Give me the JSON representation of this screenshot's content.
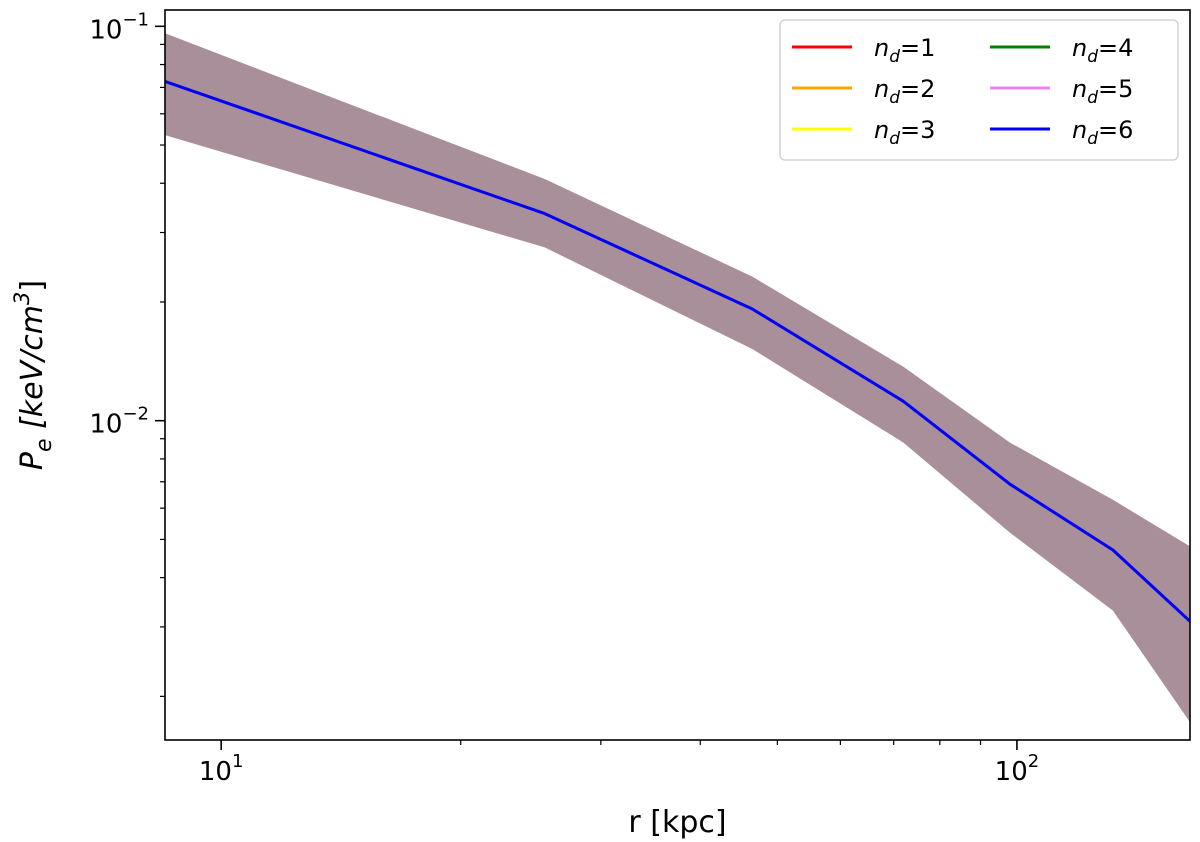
{
  "chart_data": {
    "type": "line",
    "title": "",
    "xlabel": "r [kpc]",
    "ylabel": "P_e [keV/cm^3]",
    "ylabel_parts": {
      "base": "P",
      "sub": "e",
      "unit_open": " [keV/cm",
      "unit_sup": "3",
      "unit_close": "]"
    },
    "xscale": "log",
    "yscale": "log",
    "xlim": [
      8.5,
      165
    ],
    "ylim": [
      0.00155,
      0.11
    ],
    "grid": false,
    "legend_position": "top-right",
    "x_ticks": [
      {
        "value": 10,
        "base": "10",
        "exp": "1"
      },
      {
        "value": 100,
        "base": "10",
        "exp": "2"
      }
    ],
    "y_ticks": [
      {
        "value": 0.1,
        "base": "10",
        "exp": "−1"
      },
      {
        "value": 0.01,
        "base": "10",
        "exp": "−2"
      }
    ],
    "x_minor_ticks": [
      20,
      30,
      40,
      50,
      60,
      70,
      80,
      90
    ],
    "y_minor_ticks": [
      0.002,
      0.003,
      0.004,
      0.005,
      0.006,
      0.007,
      0.008,
      0.009,
      0.02,
      0.03,
      0.04,
      0.05,
      0.06,
      0.07,
      0.08,
      0.09
    ],
    "x": [
      8.5,
      25.5,
      46.5,
      72.0,
      98.0,
      132.0,
      165.0
    ],
    "band": {
      "color": "#a88f99",
      "lower": [
        0.053,
        0.0275,
        0.0152,
        0.0088,
        0.0052,
        0.0033,
        0.00172
      ],
      "upper": [
        0.096,
        0.041,
        0.0232,
        0.0137,
        0.0088,
        0.0063,
        0.0048
      ]
    },
    "series": [
      {
        "name_base": "n",
        "name_sub": "d",
        "name_value": "=1",
        "color": "#ff0000",
        "values": [
          0.0725,
          0.0335,
          0.0192,
          0.0112,
          0.0069,
          0.0047,
          0.0031
        ]
      },
      {
        "name_base": "n",
        "name_sub": "d",
        "name_value": "=2",
        "color": "#ffa500",
        "values": [
          0.0725,
          0.0335,
          0.0192,
          0.0112,
          0.0069,
          0.0047,
          0.0031
        ]
      },
      {
        "name_base": "n",
        "name_sub": "d",
        "name_value": "=3",
        "color": "#ffff00",
        "values": [
          0.0725,
          0.0335,
          0.0192,
          0.0112,
          0.0069,
          0.0047,
          0.0031
        ]
      },
      {
        "name_base": "n",
        "name_sub": "d",
        "name_value": "=4",
        "color": "#008000",
        "values": [
          0.0725,
          0.0335,
          0.0192,
          0.0112,
          0.0069,
          0.0047,
          0.0031
        ]
      },
      {
        "name_base": "n",
        "name_sub": "d",
        "name_value": "=5",
        "color": "#ee82ee",
        "values": [
          0.0725,
          0.0335,
          0.0192,
          0.0112,
          0.0069,
          0.0047,
          0.0031
        ]
      },
      {
        "name_base": "n",
        "name_sub": "d",
        "name_value": "=6",
        "color": "#0000ff",
        "values": [
          0.0725,
          0.0335,
          0.0192,
          0.0112,
          0.0069,
          0.0047,
          0.0031
        ]
      }
    ]
  }
}
